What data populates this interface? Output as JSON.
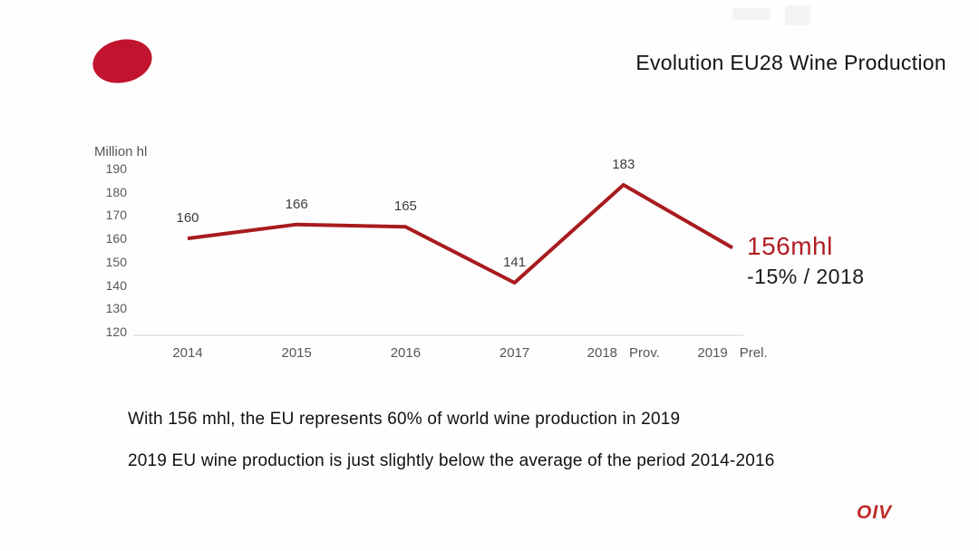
{
  "header": {
    "title": "Evolution EU28 Wine Production"
  },
  "logo": {
    "shape": "red-ellipse",
    "color": "#C1142E"
  },
  "chart_data": {
    "type": "line",
    "title": "Evolution EU28 Wine Production",
    "xlabel": "",
    "ylabel": "Million hl",
    "x": [
      "2014",
      "2015",
      "2016",
      "2017",
      "2018",
      "2019"
    ],
    "x_tick_suffixes": [
      "",
      "",
      "",
      "",
      "Prov.",
      "Prel."
    ],
    "values": [
      160,
      166,
      165,
      141,
      183,
      156
    ],
    "point_labels": [
      "160",
      "166",
      "165",
      "141",
      "183",
      ""
    ],
    "y_ticks": [
      190,
      180,
      170,
      160,
      150,
      140,
      130,
      120
    ],
    "ylim": [
      120,
      190
    ],
    "grid": false,
    "legend": "none",
    "line_color": "#A81B1E",
    "label_color": "#3c3c3c",
    "tick_color": "#585858",
    "annotation": {
      "value_text": "156mhl",
      "value_color": "#B01E24",
      "delta_text": "-15% / 2018",
      "delta_color": "#1a1a1a"
    }
  },
  "footer_notes": {
    "line1": "With 156 mhl, the EU represents 60% of world wine production in 2019",
    "line2": "2019 EU wine production is just slightly below the average of the period 2014-2016"
  },
  "branding": {
    "oiv_label": "OIV",
    "oiv_color": "#C02A28"
  }
}
